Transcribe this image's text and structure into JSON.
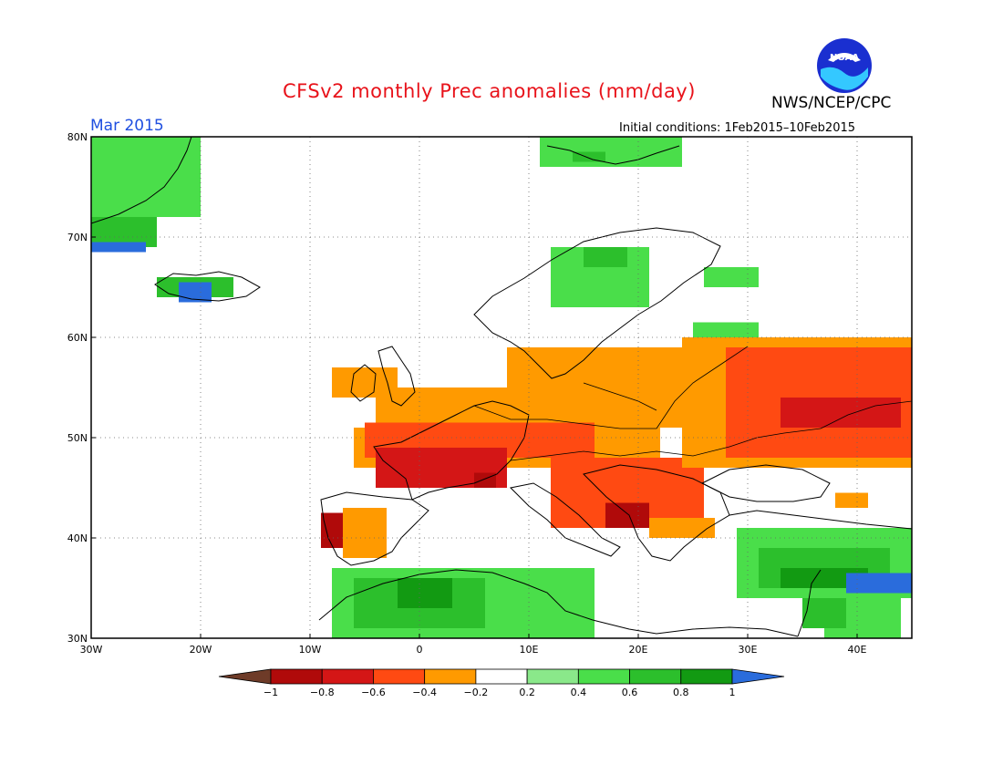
{
  "header": {
    "title": "CFSv2 monthly Prec anomalies (mm/day)",
    "org": "NWS/NCEP/CPC",
    "period": "Mar 2015",
    "initial_conditions": "Initial conditions: 1Feb2015–10Feb2015",
    "logo_text": "NOAA",
    "logo_icon": "noaa-logo-icon"
  },
  "map": {
    "lon_range": [
      -30,
      45
    ],
    "lat_range": [
      30,
      80
    ],
    "grid": "dotted",
    "x_ticks": [
      {
        "value": -30,
        "label": "30W"
      },
      {
        "value": -20,
        "label": "20W"
      },
      {
        "value": -10,
        "label": "10W"
      },
      {
        "value": 0,
        "label": "0"
      },
      {
        "value": 10,
        "label": "10E"
      },
      {
        "value": 20,
        "label": "20E"
      },
      {
        "value": 30,
        "label": "30E"
      },
      {
        "value": 40,
        "label": "40E"
      }
    ],
    "y_ticks": [
      {
        "value": 30,
        "label": "30N"
      },
      {
        "value": 40,
        "label": "40N"
      },
      {
        "value": 50,
        "label": "50N"
      },
      {
        "value": 60,
        "label": "60N"
      },
      {
        "value": 70,
        "label": "70N"
      },
      {
        "value": 80,
        "label": "80N"
      }
    ]
  },
  "colorbar": {
    "labels": [
      "−1",
      "−0.8",
      "−0.6",
      "−0.4",
      "−0.2",
      "0.2",
      "0.4",
      "0.6",
      "0.8",
      "1"
    ],
    "colors": [
      "#6e3b28",
      "#b00a0a",
      "#d41616",
      "#ff4a12",
      "#ff9a00",
      "#ffffff",
      "#8ae88a",
      "#4ade4a",
      "#2cbf2c",
      "#129a12",
      "#2a6cdc"
    ]
  },
  "anomaly_regions": [
    {
      "level": 5,
      "lon": [
        -7,
        1
      ],
      "lat": [
        37,
        44
      ]
    },
    {
      "level": 4,
      "lon": [
        -7,
        -3
      ],
      "lat": [
        38,
        43
      ]
    },
    {
      "level": 1,
      "lon": [
        -9,
        -7
      ],
      "lat": [
        39,
        42.5
      ]
    },
    {
      "level": 5,
      "lon": [
        -10,
        -7
      ],
      "lat": [
        49,
        51
      ]
    },
    {
      "level": 4,
      "lon": [
        -6,
        22
      ],
      "lat": [
        47,
        51
      ]
    },
    {
      "level": 4,
      "lon": [
        -4,
        28
      ],
      "lat": [
        51,
        55
      ]
    },
    {
      "level": 4,
      "lon": [
        8,
        24
      ],
      "lat": [
        55,
        59
      ]
    },
    {
      "level": 4,
      "lon": [
        -8,
        -2
      ],
      "lat": [
        54,
        57
      ]
    },
    {
      "level": 3,
      "lon": [
        -5,
        16
      ],
      "lat": [
        48,
        51.5
      ]
    },
    {
      "level": 2,
      "lon": [
        -4,
        8
      ],
      "lat": [
        45,
        49
      ]
    },
    {
      "level": 2,
      "lon": [
        14,
        24
      ],
      "lat": [
        42,
        46
      ]
    },
    {
      "level": 3,
      "lon": [
        12,
        26
      ],
      "lat": [
        41,
        48
      ]
    },
    {
      "level": 1,
      "lon": [
        17,
        21
      ],
      "lat": [
        41,
        43.5
      ]
    },
    {
      "level": 1,
      "lon": [
        5,
        7
      ],
      "lat": [
        45,
        46.5
      ]
    },
    {
      "level": 4,
      "lon": [
        24,
        45
      ],
      "lat": [
        47,
        60
      ]
    },
    {
      "level": 3,
      "lon": [
        28,
        45
      ],
      "lat": [
        48,
        59
      ]
    },
    {
      "level": 2,
      "lon": [
        33,
        44
      ],
      "lat": [
        51,
        54
      ]
    },
    {
      "level": 4,
      "lon": [
        38,
        41
      ],
      "lat": [
        43,
        44.5
      ]
    },
    {
      "level": 4,
      "lon": [
        21,
        27
      ],
      "lat": [
        40,
        42
      ]
    },
    {
      "level": 7,
      "lon": [
        -30,
        -20
      ],
      "lat": [
        72,
        80
      ]
    },
    {
      "level": 8,
      "lon": [
        -30,
        -24
      ],
      "lat": [
        69,
        72
      ]
    },
    {
      "level": 10,
      "lon": [
        -30,
        -25
      ],
      "lat": [
        68.5,
        69.5
      ]
    },
    {
      "level": 8,
      "lon": [
        -24,
        -17
      ],
      "lat": [
        64,
        66
      ]
    },
    {
      "level": 10,
      "lon": [
        -22,
        -19
      ],
      "lat": [
        63.5,
        65.5
      ]
    },
    {
      "level": 7,
      "lon": [
        11,
        24
      ],
      "lat": [
        77,
        80
      ]
    },
    {
      "level": 8,
      "lon": [
        14,
        17
      ],
      "lat": [
        77.5,
        78.5
      ]
    },
    {
      "level": 7,
      "lon": [
        12,
        21
      ],
      "lat": [
        63,
        69
      ]
    },
    {
      "level": 8,
      "lon": [
        15,
        19
      ],
      "lat": [
        67,
        69
      ]
    },
    {
      "level": 7,
      "lon": [
        26,
        31
      ],
      "lat": [
        65,
        67
      ]
    },
    {
      "level": 7,
      "lon": [
        25,
        31
      ],
      "lat": [
        60,
        61.5
      ]
    },
    {
      "level": 7,
      "lon": [
        -8,
        16
      ],
      "lat": [
        30,
        37
      ]
    },
    {
      "level": 8,
      "lon": [
        -6,
        6
      ],
      "lat": [
        31,
        36
      ]
    },
    {
      "level": 9,
      "lon": [
        -2,
        3
      ],
      "lat": [
        33,
        36
      ]
    },
    {
      "level": 7,
      "lon": [
        29,
        45
      ],
      "lat": [
        34,
        41
      ]
    },
    {
      "level": 8,
      "lon": [
        31,
        43
      ],
      "lat": [
        35,
        39
      ]
    },
    {
      "level": 9,
      "lon": [
        33,
        41
      ],
      "lat": [
        35,
        37
      ]
    },
    {
      "level": 10,
      "lon": [
        39,
        45
      ],
      "lat": [
        34.5,
        36.5
      ]
    },
    {
      "level": 7,
      "lon": [
        37,
        44
      ],
      "lat": [
        30,
        34
      ]
    },
    {
      "level": 8,
      "lon": [
        35,
        39
      ],
      "lat": [
        31,
        34
      ]
    }
  ]
}
